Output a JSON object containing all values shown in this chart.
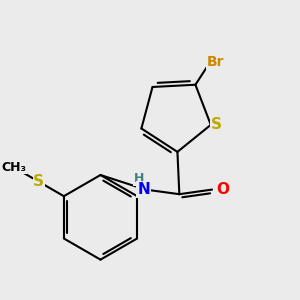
{
  "background_color": "#ebebeb",
  "atom_colors": {
    "C": "#000000",
    "H": "#408080",
    "N": "#0000ff",
    "O": "#ff0000",
    "S": "#bbaa00",
    "Br": "#cc8800"
  },
  "bond_color": "#000000",
  "bond_width": 1.5,
  "font_size_atoms": 11,
  "font_size_br": 10,
  "font_size_nh": 10
}
